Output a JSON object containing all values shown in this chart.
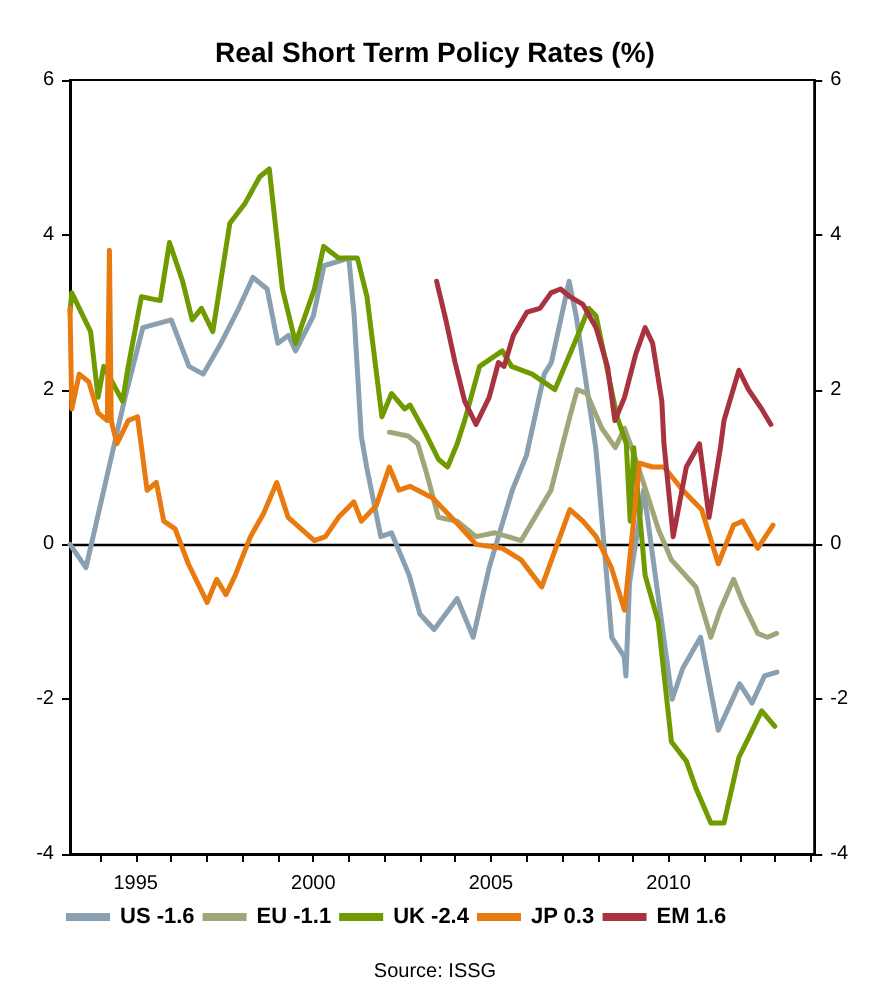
{
  "chart_data": {
    "type": "line",
    "title": "Real Short Term Policy Rates (%)",
    "annotations": [
      "Source: ISSG"
    ],
    "xlim": [
      1993.15,
      2014.1
    ],
    "xticks": [
      {
        "value": 1994,
        "label": null
      },
      1995,
      {
        "value": 1996,
        "label": null
      },
      {
        "value": 1997,
        "label": null
      },
      {
        "value": 1998,
        "label": null
      },
      {
        "value": 1999,
        "label": null
      },
      2000,
      {
        "value": 2001,
        "label": null
      },
      {
        "value": 2002,
        "label": null
      },
      {
        "value": 2003,
        "label": null
      },
      {
        "value": 2004,
        "label": null
      },
      2005,
      {
        "value": 2006,
        "label": null
      },
      {
        "value": 2007,
        "label": null
      },
      {
        "value": 2008,
        "label": null
      },
      {
        "value": 2009,
        "label": null
      },
      2010,
      {
        "value": 2011,
        "label": null
      },
      {
        "value": 2012,
        "label": null
      },
      {
        "value": 2013,
        "label": null
      },
      {
        "value": 2014,
        "label": null
      }
    ],
    "ylim": [
      -4,
      6
    ],
    "yticks": [
      -4,
      -2,
      0,
      2,
      4,
      6
    ],
    "y2lim": [
      -4,
      6
    ],
    "y2ticks": [
      -4,
      -2,
      0,
      2,
      4,
      6
    ],
    "grid": false,
    "legend": "bottom",
    "marker": "none",
    "line_style": "solid",
    "ref_lines": [
      {
        "axis": "y",
        "value": 0,
        "color": "#000000"
      }
    ],
    "series": [
      {
        "name": "US -1.6",
        "color": "#8a9fb0",
        "x": [
          1993.15,
          1993.6,
          1994.1,
          1994.4,
          1994.7,
          1995.2,
          1996.0,
          1996.5,
          1996.9,
          1997.4,
          1997.9,
          1998.3,
          1998.7,
          1999.0,
          1999.3,
          1999.5,
          2000.0,
          2000.3,
          2001.0,
          2001.15,
          2001.35,
          2001.5,
          2001.9,
          2002.2,
          2002.7,
          2003.0,
          2003.4,
          2004.05,
          2004.5,
          2004.95,
          2005.6,
          2006.0,
          2006.5,
          2006.7,
          2007.2,
          2007.4,
          2007.95,
          2008.0,
          2008.4,
          2008.75,
          2008.8,
          2008.9,
          2009.3,
          2010.1,
          2010.4,
          2010.9,
          2011.4,
          2012.0,
          2012.35,
          2012.7,
          2013.05
        ],
        "values": [
          0,
          -0.3,
          0.7,
          1.3,
          1.9,
          2.8,
          2.9,
          2.3,
          2.2,
          2.6,
          3.05,
          3.45,
          3.3,
          2.6,
          2.7,
          2.5,
          2.95,
          3.6,
          3.7,
          2.95,
          1.4,
          1.0,
          0.1,
          0.15,
          -0.4,
          -0.9,
          -1.1,
          -0.7,
          -1.2,
          -0.3,
          0.7,
          1.15,
          2.2,
          2.35,
          3.4,
          2.95,
          1.25,
          1.0,
          -1.2,
          -1.45,
          -1.7,
          -0.5,
          0.7,
          -2.0,
          -1.6,
          -1.2,
          -2.4,
          -1.8,
          -2.05,
          -1.7,
          -1.65
        ]
      },
      {
        "name": "EU -1.1",
        "color": "#a0a67a",
        "x": [
          2002.14,
          2002.67,
          2002.94,
          2003.2,
          2003.52,
          2004.05,
          2004.58,
          2005.11,
          2005.85,
          2006.11,
          2006.69,
          2007.22,
          2007.43,
          2007.7,
          2008.12,
          2008.5,
          2008.76,
          2008.92,
          2009.29,
          2009.71,
          2010.08,
          2010.77,
          2011.19,
          2011.45,
          2011.83,
          2012.09,
          2012.51,
          2012.78,
          2013.04
        ],
        "values": [
          1.45,
          1.4,
          1.3,
          0.9,
          0.35,
          0.3,
          0.1,
          0.15,
          0.05,
          0.25,
          0.7,
          1.65,
          2.0,
          1.95,
          1.5,
          1.25,
          1.5,
          1.3,
          0.8,
          0.2,
          -0.2,
          -0.55,
          -1.2,
          -0.85,
          -0.45,
          -0.75,
          -1.15,
          -1.2,
          -1.15
        ]
      },
      {
        "name": "UK -2.4",
        "color": "#6f9a00",
        "x": [
          1993.15,
          1993.2,
          1993.73,
          1993.94,
          1994.1,
          1994.63,
          1994.79,
          1995.16,
          1995.69,
          1995.95,
          1996.32,
          1996.59,
          1996.85,
          1997.17,
          1997.65,
          1998.07,
          1998.49,
          1998.76,
          1999.13,
          1999.5,
          2000.03,
          2000.29,
          2000.71,
          2001.24,
          2001.51,
          2001.93,
          2002.2,
          2002.57,
          2002.72,
          2003.2,
          2003.52,
          2003.78,
          2004.05,
          2004.26,
          2004.68,
          2005.32,
          2005.58,
          2006.16,
          2006.8,
          2007.49,
          2007.75,
          2007.96,
          2008.55,
          2008.81,
          2008.92,
          2009.02,
          2009.34,
          2009.71,
          2010.08,
          2010.5,
          2010.77,
          2011.19,
          2011.56,
          2011.98,
          2012.25,
          2012.62,
          2012.99
        ],
        "values": [
          3.0,
          3.25,
          2.75,
          1.9,
          2.3,
          1.85,
          2.3,
          3.2,
          3.15,
          3.9,
          3.4,
          2.9,
          3.05,
          2.75,
          4.15,
          4.4,
          4.75,
          4.85,
          3.3,
          2.6,
          3.3,
          3.85,
          3.7,
          3.7,
          3.2,
          1.65,
          1.95,
          1.75,
          1.8,
          1.4,
          1.1,
          1.0,
          1.3,
          1.6,
          2.3,
          2.5,
          2.3,
          2.2,
          2.0,
          2.75,
          3.05,
          2.95,
          1.65,
          1.3,
          0.3,
          1.25,
          -0.4,
          -1.0,
          -2.55,
          -2.8,
          -3.15,
          -3.6,
          -3.6,
          -2.75,
          -2.5,
          -2.15,
          -2.35
        ]
      },
      {
        "name": "JP 0.3",
        "color": "#e87a10",
        "x": [
          1993.15,
          1993.2,
          1993.41,
          1993.68,
          1993.94,
          1994.2,
          1994.26,
          1994.31,
          1994.47,
          1994.79,
          1995.05,
          1995.32,
          1995.58,
          1995.79,
          1996.11,
          1996.48,
          1997.01,
          1997.28,
          1997.54,
          1997.8,
          1998.23,
          1998.6,
          1998.97,
          1999.29,
          2000.03,
          2000.34,
          2000.71,
          2001.14,
          2001.35,
          2001.77,
          2002.14,
          2002.41,
          2002.72,
          2003.36,
          2003.99,
          2004.58,
          2005.32,
          2005.85,
          2006.43,
          2007.22,
          2007.59,
          2007.96,
          2008.39,
          2008.76,
          2009.18,
          2009.55,
          2009.87,
          2010.4,
          2010.93,
          2011.4,
          2011.83,
          2012.09,
          2012.51,
          2012.94
        ],
        "values": [
          3.05,
          1.75,
          2.2,
          2.1,
          1.7,
          1.6,
          3.8,
          1.6,
          1.3,
          1.6,
          1.65,
          0.7,
          0.8,
          0.3,
          0.2,
          -0.25,
          -0.75,
          -0.45,
          -0.65,
          -0.4,
          0.1,
          0.4,
          0.8,
          0.35,
          0.05,
          0.1,
          0.35,
          0.55,
          0.3,
          0.5,
          1.0,
          0.7,
          0.75,
          0.6,
          0.3,
          0.0,
          -0.05,
          -0.2,
          -0.55,
          0.45,
          0.3,
          0.1,
          -0.3,
          -0.85,
          1.05,
          1.0,
          1.0,
          0.7,
          0.45,
          -0.25,
          0.25,
          0.3,
          -0.05,
          0.25
        ]
      },
      {
        "name": "EM 1.6",
        "color": "#a83240",
        "x": [
          2003.47,
          2003.73,
          2003.99,
          2004.26,
          2004.58,
          2004.95,
          2005.21,
          2005.37,
          2005.63,
          2006.01,
          2006.38,
          2006.69,
          2006.96,
          2007.22,
          2007.59,
          2007.96,
          2008.28,
          2008.49,
          2008.76,
          2009.07,
          2009.34,
          2009.55,
          2009.81,
          2009.87,
          2010.13,
          2010.5,
          2010.87,
          2011.14,
          2011.46,
          2011.56,
          2011.98,
          2012.25,
          2012.62,
          2012.88
        ],
        "values": [
          3.4,
          2.9,
          2.35,
          1.85,
          1.55,
          1.9,
          2.35,
          2.3,
          2.7,
          3.0,
          3.05,
          3.25,
          3.3,
          3.2,
          3.1,
          2.8,
          2.3,
          1.6,
          1.9,
          2.45,
          2.8,
          2.6,
          1.85,
          1.3,
          0.1,
          1.0,
          1.3,
          0.35,
          1.25,
          1.6,
          2.25,
          2.0,
          1.75,
          1.55
        ]
      }
    ]
  }
}
